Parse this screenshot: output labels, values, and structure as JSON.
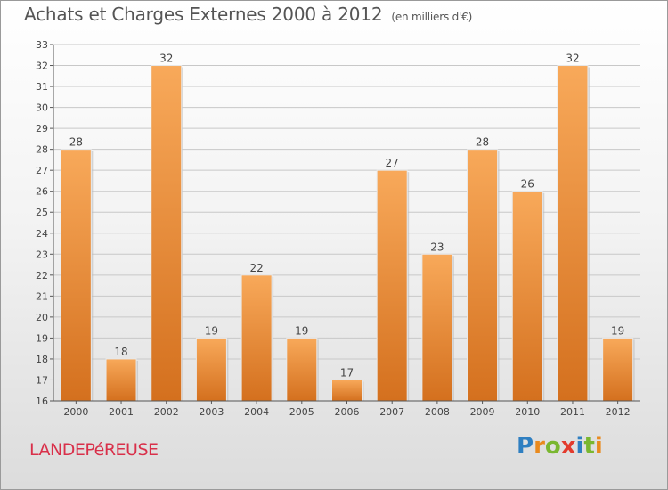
{
  "header": {
    "title": "Achats et Charges Externes 2000 à 2012",
    "unit": "(en milliers d'€)"
  },
  "footer": {
    "town": "LANDEPéREUSE",
    "logo": {
      "letters": [
        "P",
        "r",
        "o",
        "x",
        "i",
        "t",
        "i"
      ],
      "colors": [
        "#2f7fc1",
        "#e98a1e",
        "#7ab730",
        "#e33b2d",
        "#2f7fc1",
        "#7ab730",
        "#e98a1e"
      ]
    }
  },
  "colors": {
    "bar_light": "#f8a95a",
    "bar_dark": "#d4701e",
    "grid": "#c8c8c8",
    "axis": "#555555",
    "text": "#444444"
  },
  "chart_data": {
    "type": "bar",
    "categories": [
      "2000",
      "2001",
      "2002",
      "2003",
      "2004",
      "2005",
      "2006",
      "2007",
      "2008",
      "2009",
      "2010",
      "2011",
      "2012"
    ],
    "values": [
      28,
      18,
      32,
      19,
      22,
      19,
      17,
      27,
      23,
      28,
      26,
      32,
      19
    ],
    "ylim": [
      16,
      33
    ],
    "yticks": [
      16,
      17,
      18,
      19,
      20,
      21,
      22,
      23,
      24,
      25,
      26,
      27,
      28,
      29,
      30,
      31,
      32,
      33
    ],
    "grid": true,
    "data_labels": true
  }
}
